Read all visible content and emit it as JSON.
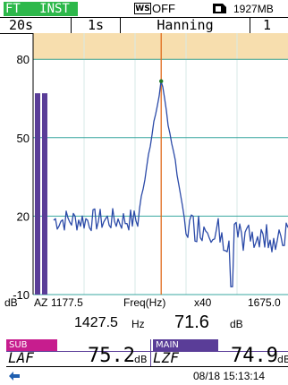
{
  "status": {
    "mode_ft": "FT",
    "mode_inst": "INST",
    "ws_icon": "WS",
    "ws_state": "OFF",
    "card_icon": "sd-card-icon",
    "memory": "1927MB"
  },
  "settings": {
    "time": "20s",
    "interval": "1s",
    "window": "Hanning",
    "extra": "1"
  },
  "chart_data": {
    "type": "line",
    "ylim": [
      -10,
      90
    ],
    "yticks": [
      80,
      50,
      20,
      -10
    ],
    "xlim": [
      1177.5,
      1675.0
    ],
    "marker_x": 1427.5,
    "peak_y": 71.6,
    "bars": [
      {
        "label": "A",
        "value": 67
      },
      {
        "label": "Z",
        "value": 67
      }
    ],
    "colors": {
      "spectrum": "#2b4aa8",
      "marker": "#e06a1c",
      "band": "#f7deae",
      "bar": "#5a3d98"
    }
  },
  "axis": {
    "db_label": "dB",
    "az_label": "AZ",
    "x_start": "1177.5",
    "freq_label": "Freq(Hz)",
    "zoom": "x40",
    "x_end": "1675.0"
  },
  "marker": {
    "freq": "1427.5",
    "freq_unit": "Hz",
    "level": "71.6",
    "level_unit": "dB"
  },
  "sub": {
    "label": "SUB",
    "name": "LAF",
    "value": "75.2",
    "unit": "dB"
  },
  "main": {
    "label": "MAIN",
    "name": "LZF",
    "value": "74.9",
    "unit": "dB"
  },
  "footer": {
    "icon": "battery-plug-icon",
    "datetime": "08/18 15:13:14"
  }
}
